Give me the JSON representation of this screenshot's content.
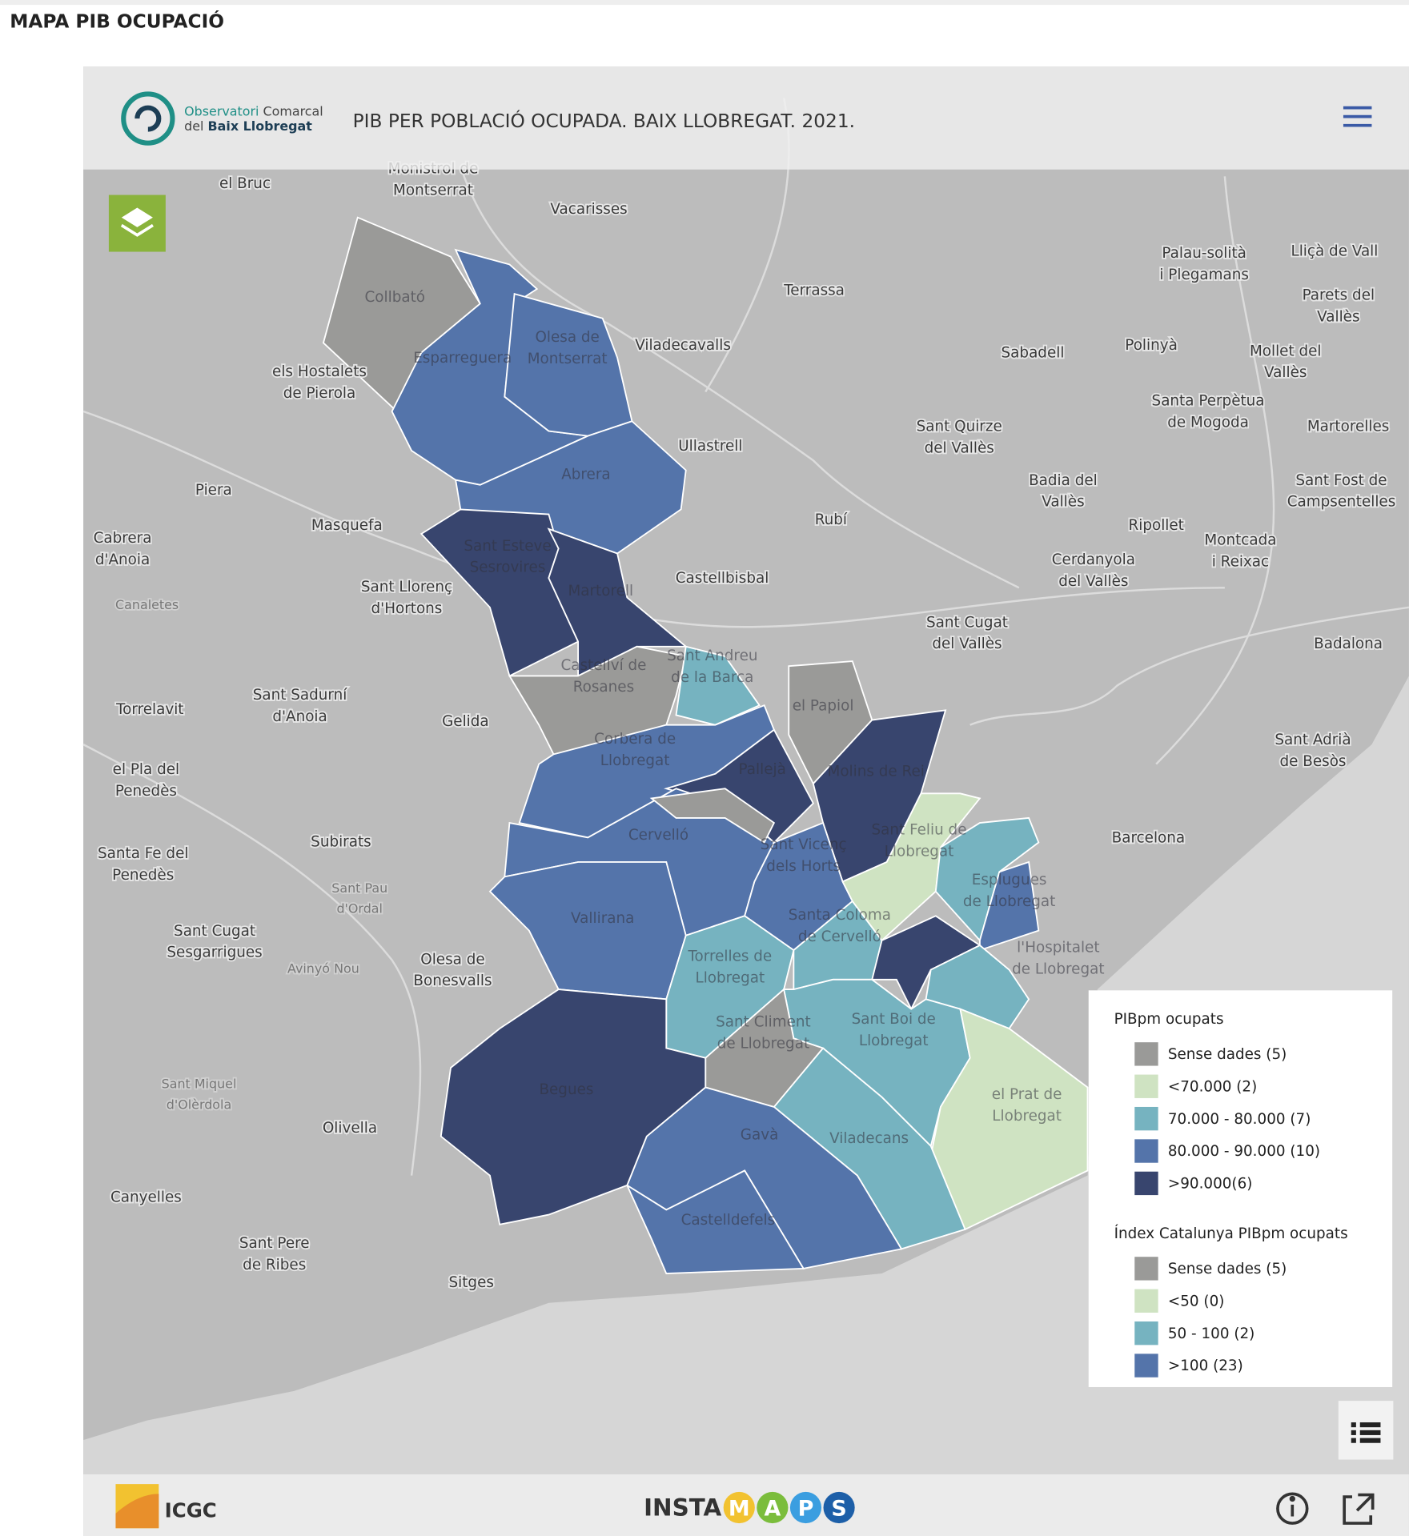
{
  "page_title": "MAPA PIB OCUPACIÓ",
  "map": {
    "title": "PIB PER POBLACIÓ OCUPADA. BAIX LLOBREGAT. 2021.",
    "logo": {
      "line1a": "Observatori",
      "line1b": "Comarcal",
      "line2a": "del",
      "line2b": "Baix Llobregat"
    },
    "places": [
      [
        "el Bruc"
      ],
      [
        "Monistrol de",
        "Montserrat"
      ],
      [
        "Vacarisses"
      ],
      [
        "Terrassa"
      ],
      [
        "Palau-solità",
        "i Plegamans"
      ],
      [
        "Lliçà de Vall"
      ],
      [
        "Parets del",
        "Vallès"
      ],
      [
        "Viladecavalls"
      ],
      [
        "Sabadell"
      ],
      [
        "Polinyà"
      ],
      [
        "Mollet del",
        "Vallès"
      ],
      [
        "els Hostalets",
        "de Pierola"
      ],
      [
        "Santa Perpètua",
        "de Mogoda"
      ],
      [
        "Martorelles"
      ],
      [
        "Sant Quirze",
        "del Vallès"
      ],
      [
        "Ullastrell"
      ],
      [
        "Badia del",
        "Vallès"
      ],
      [
        "Sant Fost de",
        "Campsentelles"
      ],
      [
        "Piera"
      ],
      [
        "Rubí"
      ],
      [
        "Masquefa"
      ],
      [
        "Ripollet"
      ],
      [
        "Cabrera",
        "d'Anoia"
      ],
      [
        "Montcada",
        "i Reixac"
      ],
      [
        "Cerdanyola",
        "del Vallès"
      ],
      [
        "Castellbisbal"
      ],
      [
        "Sant Llorenç",
        "d'Hortons"
      ],
      [
        "Sant Cugat",
        "del Vallès"
      ],
      [
        "Badalona"
      ],
      [
        "Sant Sadurní",
        "d'Anoia"
      ],
      [
        "Torrelavit"
      ],
      [
        "Gelida"
      ],
      [
        "Sant Adrià",
        "de Besòs"
      ],
      [
        "el Pla del",
        "Penedès"
      ],
      [
        "Barcelona"
      ],
      [
        "Subirats"
      ],
      [
        "Santa Fe del",
        "Penedès"
      ],
      [
        "Sant Cugat",
        "Sesgarrigues"
      ],
      [
        "Olesa de",
        "Bonesvalls"
      ],
      [
        "Olivella"
      ],
      [
        "Canyelles"
      ],
      [
        "Sant Pere",
        "de Ribes"
      ],
      [
        "Sitges"
      ]
    ],
    "small_places": [
      [
        "Canaletes"
      ],
      [
        "Sant Pau",
        "d'Ordal"
      ],
      [
        "Avinyó Nou"
      ],
      [
        "Sant Miquel",
        "d'Olèrdola"
      ]
    ],
    "municipalities": [
      [
        "Collbató"
      ],
      [
        "Esparreguera"
      ],
      [
        "Olesa de",
        "Montserrat"
      ],
      [
        "Abrera"
      ],
      [
        "Sant Esteve",
        "Sesrovires"
      ],
      [
        "Martorell"
      ],
      [
        "Castellví de",
        "Rosanes"
      ],
      [
        "Sant Andreu",
        "de la Barca"
      ],
      [
        "el Papiol"
      ],
      [
        "Corbera de",
        "Llobregat"
      ],
      [
        "Pallejà"
      ],
      [
        "Molins de Rei"
      ],
      [
        "Cervelló"
      ],
      [
        "Sant Feliu de",
        "Llobregat"
      ],
      [
        "Sant Vicenç",
        "dels Horts"
      ],
      [
        "Esplugues",
        "de Llobregat"
      ],
      [
        "Vallirana"
      ],
      [
        "Santa Coloma",
        "de Cervelló"
      ],
      [
        "Torrelles de",
        "Llobregat"
      ],
      [
        "l'Hospitalet",
        "de Llobregat"
      ],
      [
        "Sant Climent",
        "de Llobregat"
      ],
      [
        "Sant Boi de",
        "Llobregat"
      ],
      [
        "el Prat de",
        "Llobregat"
      ],
      [
        "Begues"
      ],
      [
        "Gavà"
      ],
      [
        "Viladecans"
      ],
      [
        "Castelldefels"
      ]
    ]
  },
  "legend": {
    "groups": [
      {
        "title": "PIBpm ocupats",
        "items": [
          {
            "label": "Sense dades (5)",
            "color": "#9a9a98"
          },
          {
            "label": "<70.000 (2)",
            "color": "#cfe3c2"
          },
          {
            "label": "70.000 - 80.000 (7)",
            "color": "#76b3c0"
          },
          {
            "label": "80.000 - 90.000 (10)",
            "color": "#5474aa"
          },
          {
            "label": ">90.000(6)",
            "color": "#38456e"
          }
        ]
      },
      {
        "title": "Índex Catalunya PIBpm ocupats",
        "items": [
          {
            "label": "Sense dades (5)",
            "color": "#9a9a98"
          },
          {
            "label": "<50 (0)",
            "color": "#cfe3c2"
          },
          {
            "label": "50 - 100 (2)",
            "color": "#76b3c0"
          },
          {
            "label": ">100 (23)",
            "color": "#5474aa"
          }
        ]
      }
    ]
  },
  "footer": {
    "icgc": "ICGC",
    "insta": "INSTA",
    "letters": [
      "M",
      "A",
      "P",
      "S"
    ]
  }
}
